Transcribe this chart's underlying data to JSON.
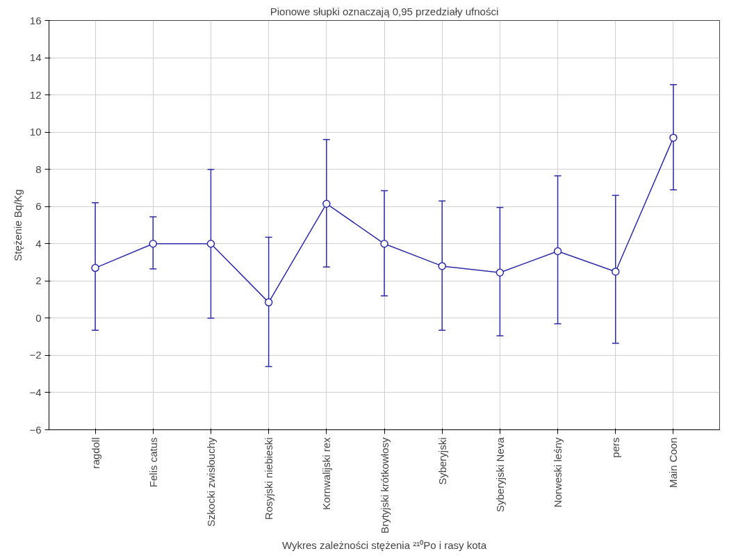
{
  "chart_data": {
    "type": "line",
    "title": "Pionowe słupki oznaczają 0,95 przedziały ufności",
    "xlabel": "Wykres zależności stężenia ²¹⁰Po i rasy kota",
    "ylabel": "Stężenie Bq/Kg",
    "categories": [
      "ragdoll",
      "Felis catus",
      "Szkocki zwisłouchy",
      "Rosyjski niebieski",
      "Kornwalijski rex",
      "Brytyjski krótkowłosy",
      "Syberyjski",
      "Syberyjski Neva",
      "Norweski leśny",
      "pers",
      "Main Coon"
    ],
    "series": [
      {
        "color": "#2b2ba8",
        "values": [
          2.7,
          4.0,
          4.0,
          0.85,
          6.15,
          4.0,
          2.8,
          2.45,
          3.6,
          2.5,
          9.7
        ],
        "errors": [
          [
            -0.65,
            6.2
          ],
          [
            2.65,
            5.45
          ],
          [
            0.0,
            8.0
          ],
          [
            -2.6,
            4.35
          ],
          [
            2.75,
            9.6
          ],
          [
            1.2,
            6.85
          ],
          [
            -0.65,
            6.3
          ],
          [
            -0.95,
            5.95
          ],
          [
            -0.3,
            7.65
          ],
          [
            -1.35,
            6.6
          ],
          [
            6.9,
            12.55
          ]
        ]
      }
    ],
    "ylim": [
      -6,
      16
    ],
    "yticks": [
      -6,
      -4,
      -2,
      0,
      2,
      4,
      6,
      8,
      10,
      12,
      14,
      16
    ],
    "grid": true,
    "marker": "circle",
    "line_style": "solid"
  }
}
